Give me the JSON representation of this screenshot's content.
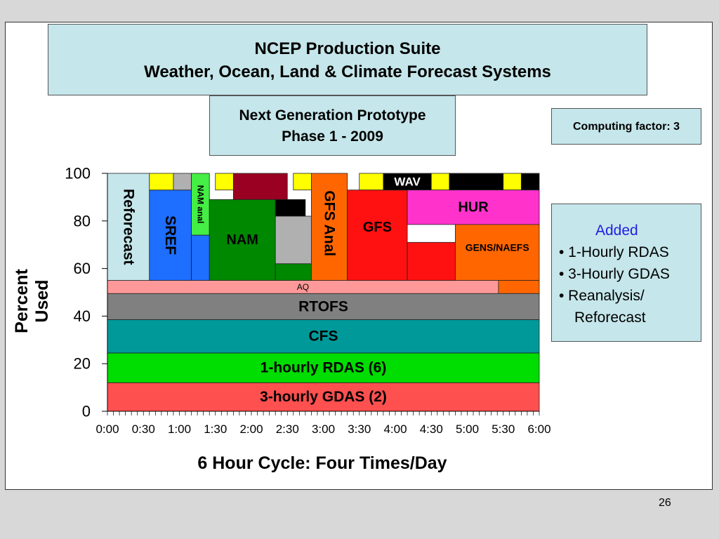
{
  "slide": {
    "title_line1": "NCEP Production Suite",
    "title_line2": "Weather, Ocean, Land & Climate Forecast Systems",
    "subtitle_line1": "Next Generation Prototype",
    "subtitle_line2": "Phase 1 - 2009",
    "computing_factor": "Computing factor: 3",
    "added_heading": "Added",
    "added_items": [
      "• 1-Hourly RDAS",
      "• 3-Hourly GDAS",
      "• Reanalysis/",
      "Reforecast"
    ],
    "page_number": "26"
  },
  "colors": {
    "background": "#d8d8d8",
    "box_fill": "#c5e6ea",
    "added_heading": "#1f1fe0"
  },
  "chart_data": {
    "type": "area",
    "ylabel": "Percent Used",
    "xlabel": "6 Hour Cycle: Four Times/Day",
    "ylim": [
      0,
      100
    ],
    "yticks": [
      0,
      20,
      40,
      60,
      80,
      100
    ],
    "xlim": [
      0,
      360
    ],
    "xtick_labels": [
      "0:00",
      "0:30",
      "1:00",
      "1:30",
      "2:00",
      "2:30",
      "3:00",
      "3:30",
      "4:00",
      "4:30",
      "5:00",
      "5:30",
      "6:00"
    ],
    "grid": false,
    "blocks": [
      {
        "label": "3-hourly GDAS (2)",
        "x0": 0,
        "x1": 360,
        "y0": 0,
        "y1": 12,
        "color": "#ff5050"
      },
      {
        "label": "1-hourly RDAS (6)",
        "x0": 0,
        "x1": 360,
        "y0": 12,
        "y1": 24.5,
        "color": "#00dd00"
      },
      {
        "label": "CFS",
        "x0": 0,
        "x1": 360,
        "y0": 24.5,
        "y1": 38.5,
        "color": "#009999"
      },
      {
        "label": "RTOFS",
        "x0": 0,
        "x1": 360,
        "y0": 38.5,
        "y1": 49.5,
        "color": "#808080"
      },
      {
        "label": "AQ",
        "x0": 0,
        "x1": 326,
        "y0": 49.5,
        "y1": 55,
        "color": "#ff9999"
      },
      {
        "label": "",
        "x0": 326,
        "x1": 360,
        "y0": 49.5,
        "y1": 55,
        "color": "#ff6600"
      },
      {
        "label": "Reforecast",
        "x0": 0,
        "x1": 35,
        "y0": 55,
        "y1": 100,
        "color": "#c5e6ea"
      },
      {
        "label": "SREF",
        "x0": 35,
        "x1": 70,
        "y0": 55,
        "y1": 93,
        "color": "#1e6eff"
      },
      {
        "label": "",
        "x0": 35,
        "x1": 55,
        "y0": 93,
        "y1": 100,
        "color": "#ffff00"
      },
      {
        "label": "",
        "x0": 55,
        "x1": 70,
        "y0": 93,
        "y1": 100,
        "color": "#b0b0b0"
      },
      {
        "label": "NAM anal",
        "x0": 70,
        "x1": 85,
        "y0": 74,
        "y1": 100,
        "color": "#44ee44"
      },
      {
        "label": "",
        "x0": 70,
        "x1": 85,
        "y0": 55,
        "y1": 74,
        "color": "#1e6eff"
      },
      {
        "label": "NAM",
        "x0": 85,
        "x1": 140,
        "y0": 55,
        "y1": 89,
        "color": "#008800"
      },
      {
        "label": "",
        "x0": 90,
        "x1": 105,
        "y0": 93,
        "y1": 100,
        "color": "#ffff00"
      },
      {
        "label": "",
        "x0": 105,
        "x1": 150,
        "y0": 89,
        "y1": 100,
        "color": "#990022"
      },
      {
        "label": "",
        "x0": 140,
        "x1": 165,
        "y0": 82,
        "y1": 89,
        "color": "#000000"
      },
      {
        "label": "",
        "x0": 140,
        "x1": 170,
        "y0": 62,
        "y1": 82,
        "color": "#b0b0b0"
      },
      {
        "label": "",
        "x0": 140,
        "x1": 170,
        "y0": 55,
        "y1": 62,
        "color": "#008800"
      },
      {
        "label": "",
        "x0": 155,
        "x1": 170,
        "y0": 93,
        "y1": 100,
        "color": "#ffff00"
      },
      {
        "label": "GFS Anal",
        "x0": 170,
        "x1": 200,
        "y0": 55,
        "y1": 100,
        "color": "#ff6600"
      },
      {
        "label": "",
        "x0": 210,
        "x1": 230,
        "y0": 93,
        "y1": 100,
        "color": "#ffff00"
      },
      {
        "label": "GFS",
        "x0": 200,
        "x1": 250,
        "y0": 55,
        "y1": 93,
        "color": "#ff1111"
      },
      {
        "label": "WAV",
        "x0": 230,
        "x1": 270,
        "y0": 93,
        "y1": 100,
        "color": "#000000"
      },
      {
        "label": "",
        "x0": 270,
        "x1": 285,
        "y0": 93,
        "y1": 100,
        "color": "#ffff00"
      },
      {
        "label": "",
        "x0": 285,
        "x1": 330,
        "y0": 93,
        "y1": 100,
        "color": "#000000"
      },
      {
        "label": "",
        "x0": 330,
        "x1": 345,
        "y0": 93,
        "y1": 100,
        "color": "#ffff00"
      },
      {
        "label": "",
        "x0": 345,
        "x1": 360,
        "y0": 93,
        "y1": 100,
        "color": "#000000"
      },
      {
        "label": "HUR",
        "x0": 250,
        "x1": 360,
        "y0": 78.5,
        "y1": 93,
        "color": "#ff33cc"
      },
      {
        "label": "",
        "x0": 250,
        "x1": 290,
        "y0": 55,
        "y1": 71,
        "color": "#ff1111"
      },
      {
        "label": "GENS/NAEFS",
        "x0": 290,
        "x1": 360,
        "y0": 55,
        "y1": 78.5,
        "color": "#ff6600"
      }
    ]
  }
}
